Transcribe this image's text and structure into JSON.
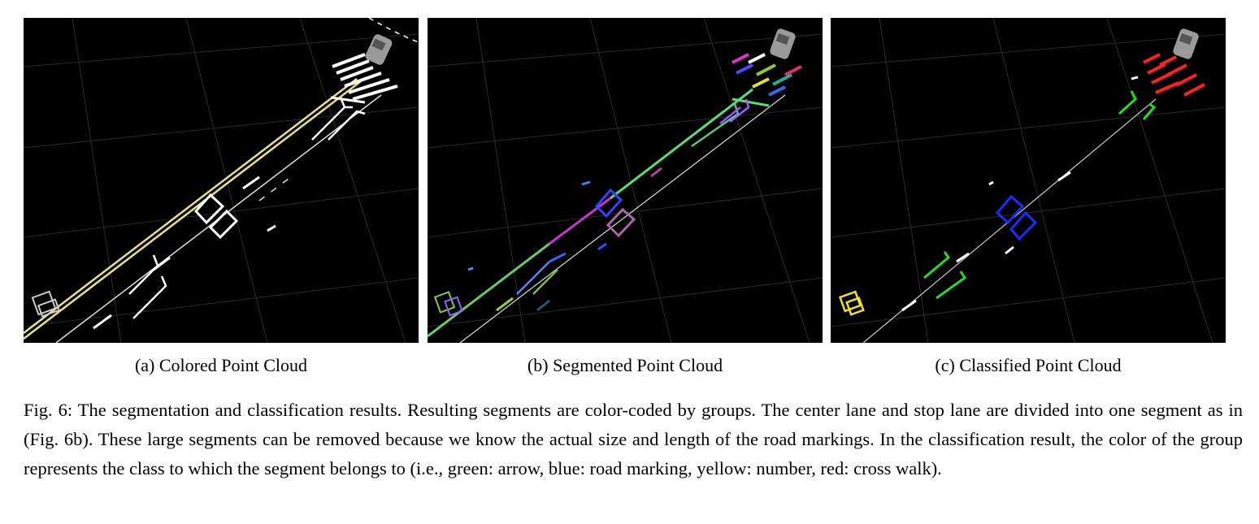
{
  "figure": {
    "panels": [
      {
        "id": "a",
        "caption": "(a) Colored Point Cloud"
      },
      {
        "id": "b",
        "caption": "(b) Segmented Point Cloud"
      },
      {
        "id": "c",
        "caption": "(c) Classified Point Cloud"
      }
    ],
    "caption": "Fig. 6: The segmentation and classification results. Resulting segments are color-coded by groups. The center lane and stop lane are divided into one segment as in (Fig. 6b). These large segments can be removed because we know the actual size and length of the road markings. In the classification result, the color of the group represents the class to which the segment belongs to (i.e., green: arrow, blue: road marking, yellow: number, red: cross walk).",
    "colors": {
      "background": "#000000",
      "arrow": "#22dd22",
      "road_marking": "#1a2cff",
      "number": "#f0e020",
      "cross_walk": "#ff2020",
      "lane_yellow": "#e8e08a",
      "marking_white": "#e8e8e8",
      "grid": "#2a2a2a"
    }
  }
}
